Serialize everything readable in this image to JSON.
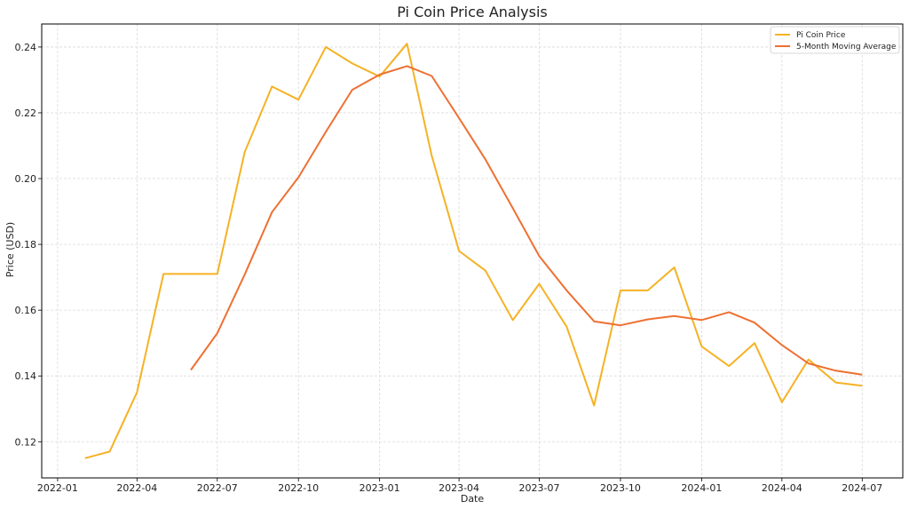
{
  "chart_data": {
    "type": "line",
    "title": "Pi Coin Price Analysis",
    "xlabel": "Date",
    "ylabel": "Price (USD)",
    "xlim": [
      "2021-12-14",
      "2024-08-16"
    ],
    "ylim": [
      0.109,
      0.247
    ],
    "x_ticks": [
      "2022-01",
      "2022-04",
      "2022-07",
      "2022-10",
      "2023-01",
      "2023-04",
      "2023-07",
      "2023-10",
      "2024-01",
      "2024-04",
      "2024-07"
    ],
    "y_ticks": [
      0.12,
      0.14,
      0.16,
      0.18,
      0.2,
      0.22,
      0.24
    ],
    "grid": true,
    "legend_position": "top-right",
    "series": [
      {
        "name": "Pi Coin Price",
        "color": "#f5b225",
        "x": [
          "2022-02",
          "2022-03",
          "2022-04",
          "2022-05",
          "2022-06",
          "2022-07",
          "2022-08",
          "2022-09",
          "2022-10",
          "2022-11",
          "2022-12",
          "2023-01",
          "2023-02",
          "2023-03",
          "2023-04",
          "2023-05",
          "2023-06",
          "2023-07",
          "2023-08",
          "2023-09",
          "2023-10",
          "2023-11",
          "2023-12",
          "2024-01",
          "2024-02",
          "2024-03",
          "2024-04",
          "2024-05",
          "2024-06",
          "2024-07"
        ],
        "values": [
          0.115,
          0.117,
          0.135,
          0.171,
          0.171,
          0.171,
          0.208,
          0.228,
          0.224,
          0.24,
          0.235,
          0.231,
          0.241,
          0.207,
          0.178,
          0.172,
          0.157,
          0.168,
          0.155,
          0.131,
          0.166,
          0.166,
          0.173,
          0.149,
          0.143,
          0.15,
          0.132,
          0.145,
          0.138,
          0.137
        ]
      },
      {
        "name": "5-Month Moving Average",
        "color": "#ee7032",
        "x": [
          "2022-06",
          "2022-07",
          "2022-08",
          "2022-09",
          "2022-10",
          "2022-11",
          "2022-12",
          "2023-01",
          "2023-02",
          "2023-03",
          "2023-04",
          "2023-05",
          "2023-06",
          "2023-07",
          "2023-08",
          "2023-09",
          "2023-10",
          "2023-11",
          "2023-12",
          "2024-01",
          "2024-02",
          "2024-03",
          "2024-04",
          "2024-05",
          "2024-06",
          "2024-07"
        ],
        "values": [
          0.1418,
          0.153,
          0.1708,
          0.1898,
          0.2004,
          0.2142,
          0.227,
          0.2316,
          0.2342,
          0.2312,
          0.2184,
          0.2058,
          0.191,
          0.1764,
          0.166,
          0.1566,
          0.1554,
          0.1572,
          0.1582,
          0.157,
          0.1594,
          0.1562,
          0.1494,
          0.1438,
          0.1416,
          0.1404
        ]
      }
    ]
  }
}
